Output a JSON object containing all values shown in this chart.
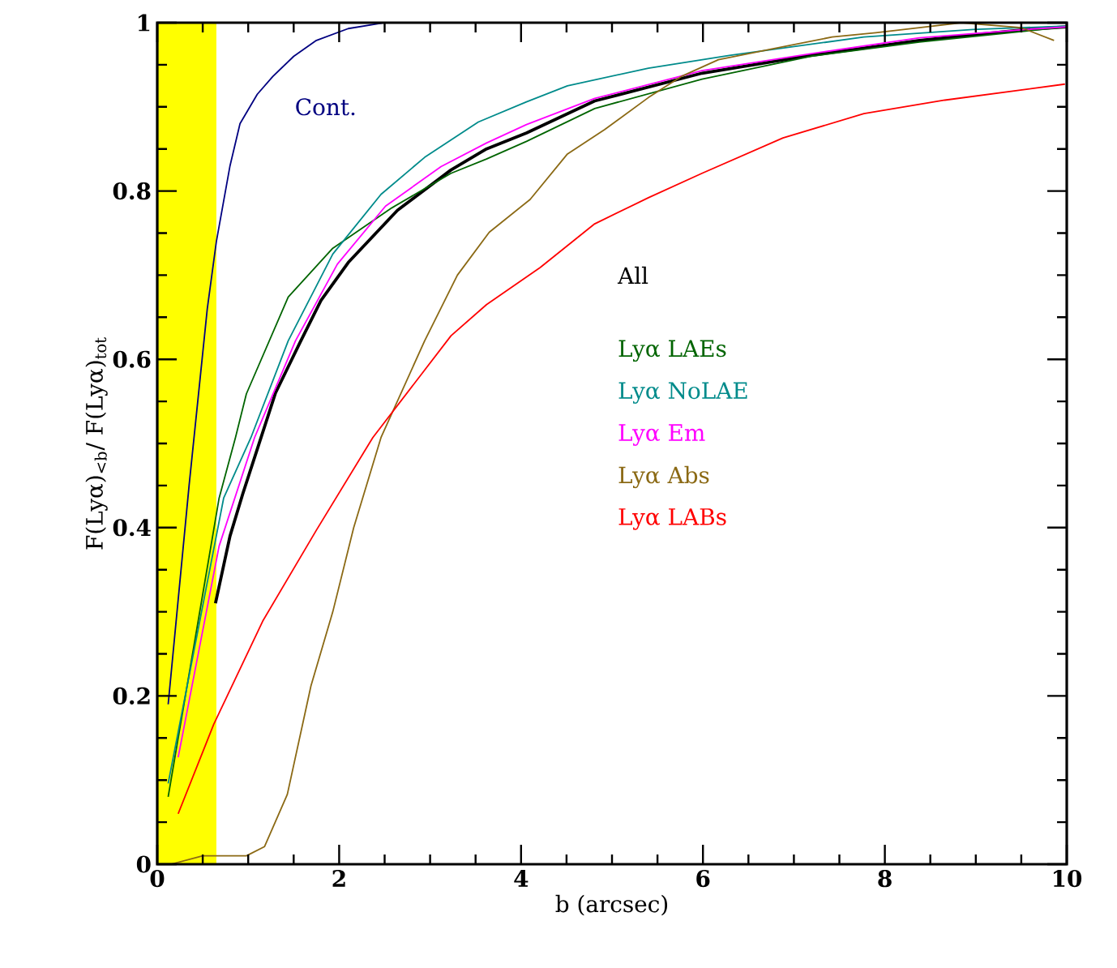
{
  "chart_data": {
    "type": "line",
    "xlabel": "b (arcsec)",
    "ylabel": "F(Lyα)$_{<b}$/ F(Lyα)$_{tot}$",
    "xlim": [
      0,
      10
    ],
    "ylim": [
      0,
      1
    ],
    "xticks": [
      0,
      2,
      4,
      6,
      8,
      10
    ],
    "yticks": [
      0,
      0.2,
      0.4,
      0.6,
      0.8,
      1
    ],
    "grid": false,
    "marker": "none",
    "line_style": "solid",
    "bands": [
      {
        "axis": "x",
        "from": 0,
        "to": 0.65,
        "color": "#ffff00"
      }
    ],
    "series": [
      {
        "name": "Cont.",
        "color": "#000080",
        "x": [
          0.12,
          0.35,
          0.55,
          0.65,
          0.8,
          0.91,
          1.1,
          1.27,
          1.5,
          1.75,
          2.1,
          2.5
        ],
        "values": [
          0.19,
          0.45,
          0.66,
          0.74,
          0.83,
          0.88,
          0.915,
          0.936,
          0.96,
          0.979,
          0.993,
          1.0
        ]
      },
      {
        "name": "All",
        "color": "#000000",
        "x": [
          0.64,
          0.8,
          0.94,
          1.09,
          1.3,
          1.57,
          1.8,
          2.1,
          2.64,
          3.23,
          3.62,
          4.06,
          4.81,
          5.99,
          7.18,
          8.38,
          9.55,
          10
        ],
        "values": [
          0.31,
          0.39,
          0.44,
          0.49,
          0.56,
          0.62,
          0.67,
          0.715,
          0.777,
          0.825,
          0.85,
          0.869,
          0.907,
          0.94,
          0.961,
          0.979,
          0.992,
          0.995
        ]
      },
      {
        "name": "Lyα LAEs",
        "color": "#006400",
        "x": [
          0.12,
          0.68,
          0.86,
          0.98,
          1.44,
          1.93,
          2.58,
          3.23,
          3.62,
          4.06,
          4.81,
          5.99,
          7.18,
          8.38,
          9.55,
          10
        ],
        "values": [
          0.08,
          0.435,
          0.507,
          0.559,
          0.674,
          0.732,
          0.78,
          0.821,
          0.838,
          0.859,
          0.898,
          0.933,
          0.96,
          0.977,
          0.99,
          0.995
        ]
      },
      {
        "name": "Lyα NoLAE",
        "color": "#008b8b",
        "x": [
          0.12,
          0.73,
          1.03,
          1.44,
          1.93,
          2.46,
          2.94,
          3.53,
          4.06,
          4.51,
          5.4,
          6.29,
          7.77,
          8.97,
          10
        ],
        "values": [
          0.096,
          0.435,
          0.507,
          0.622,
          0.725,
          0.796,
          0.84,
          0.882,
          0.906,
          0.925,
          0.946,
          0.961,
          0.983,
          0.992,
          0.996
        ]
      },
      {
        "name": "Lyα Em",
        "color": "#ff00ff",
        "x": [
          0.23,
          0.68,
          1.07,
          1.52,
          1.98,
          2.51,
          3.12,
          3.62,
          4.06,
          4.81,
          5.99,
          7.18,
          8.38,
          9.55,
          10
        ],
        "values": [
          0.127,
          0.378,
          0.507,
          0.622,
          0.713,
          0.782,
          0.829,
          0.857,
          0.879,
          0.91,
          0.943,
          0.963,
          0.982,
          0.992,
          0.995
        ]
      },
      {
        "name": "Lyα Abs",
        "color": "#8b6914",
        "x": [
          0.15,
          0.5,
          0.98,
          1.18,
          1.43,
          1.69,
          1.93,
          2.16,
          2.46,
          2.94,
          3.3,
          3.65,
          4.1,
          4.51,
          4.92,
          5.4,
          5.76,
          6.17,
          6.77,
          7.42,
          7.9,
          8.38,
          8.84,
          9.5,
          9.86
        ],
        "values": [
          0.0,
          0.01,
          0.01,
          0.021,
          0.083,
          0.212,
          0.3,
          0.4,
          0.507,
          0.622,
          0.7,
          0.751,
          0.79,
          0.844,
          0.873,
          0.911,
          0.936,
          0.956,
          0.969,
          0.983,
          0.988,
          0.994,
          1.0,
          0.994,
          0.979
        ]
      },
      {
        "name": "Lyα LABs",
        "color": "#ff0000",
        "x": [
          0.23,
          0.62,
          1.16,
          1.75,
          2.37,
          3.23,
          3.62,
          4.21,
          4.81,
          5.4,
          5.99,
          6.88,
          7.77,
          8.66,
          9.98
        ],
        "values": [
          0.06,
          0.166,
          0.289,
          0.397,
          0.507,
          0.628,
          0.665,
          0.709,
          0.761,
          0.792,
          0.821,
          0.863,
          0.892,
          0.908,
          0.927
        ]
      }
    ]
  }
}
